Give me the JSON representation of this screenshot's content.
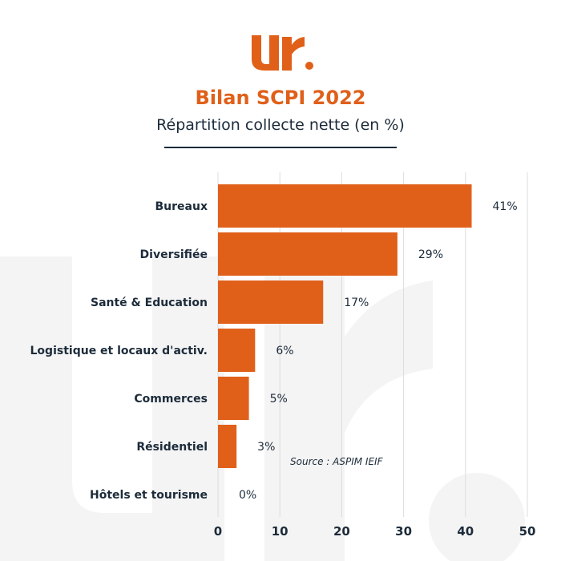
{
  "header": {
    "title": "Bilan SCPI 2022",
    "subtitle": "Répartition collecte nette (en %)"
  },
  "source": "Source : ASPIM IEIF",
  "colors": {
    "accent": "#e0601a",
    "text": "#1c2b3a",
    "grid": "#dcdcdc",
    "watermark": "#f3f3f3"
  },
  "chart_data": {
    "type": "bar",
    "orientation": "horizontal",
    "title": "Bilan SCPI 2022",
    "subtitle": "Répartition collecte nette (en %)",
    "categories": [
      "Bureaux",
      "Diversifiée",
      "Santé & Education",
      "Logistique et locaux d'activ.",
      "Commerces",
      "Résidentiel",
      "Hôtels et tourisme"
    ],
    "values": [
      41,
      29,
      17,
      6,
      5,
      3,
      0
    ],
    "data_labels": [
      "41%",
      "29%",
      "17%",
      "6%",
      "5%",
      "3%",
      "0%"
    ],
    "xlim": [
      0,
      50
    ],
    "xticks": [
      0,
      10,
      20,
      30,
      40,
      50
    ],
    "xlabel": "",
    "ylabel": "",
    "grid": "vertical",
    "legend": "none"
  }
}
